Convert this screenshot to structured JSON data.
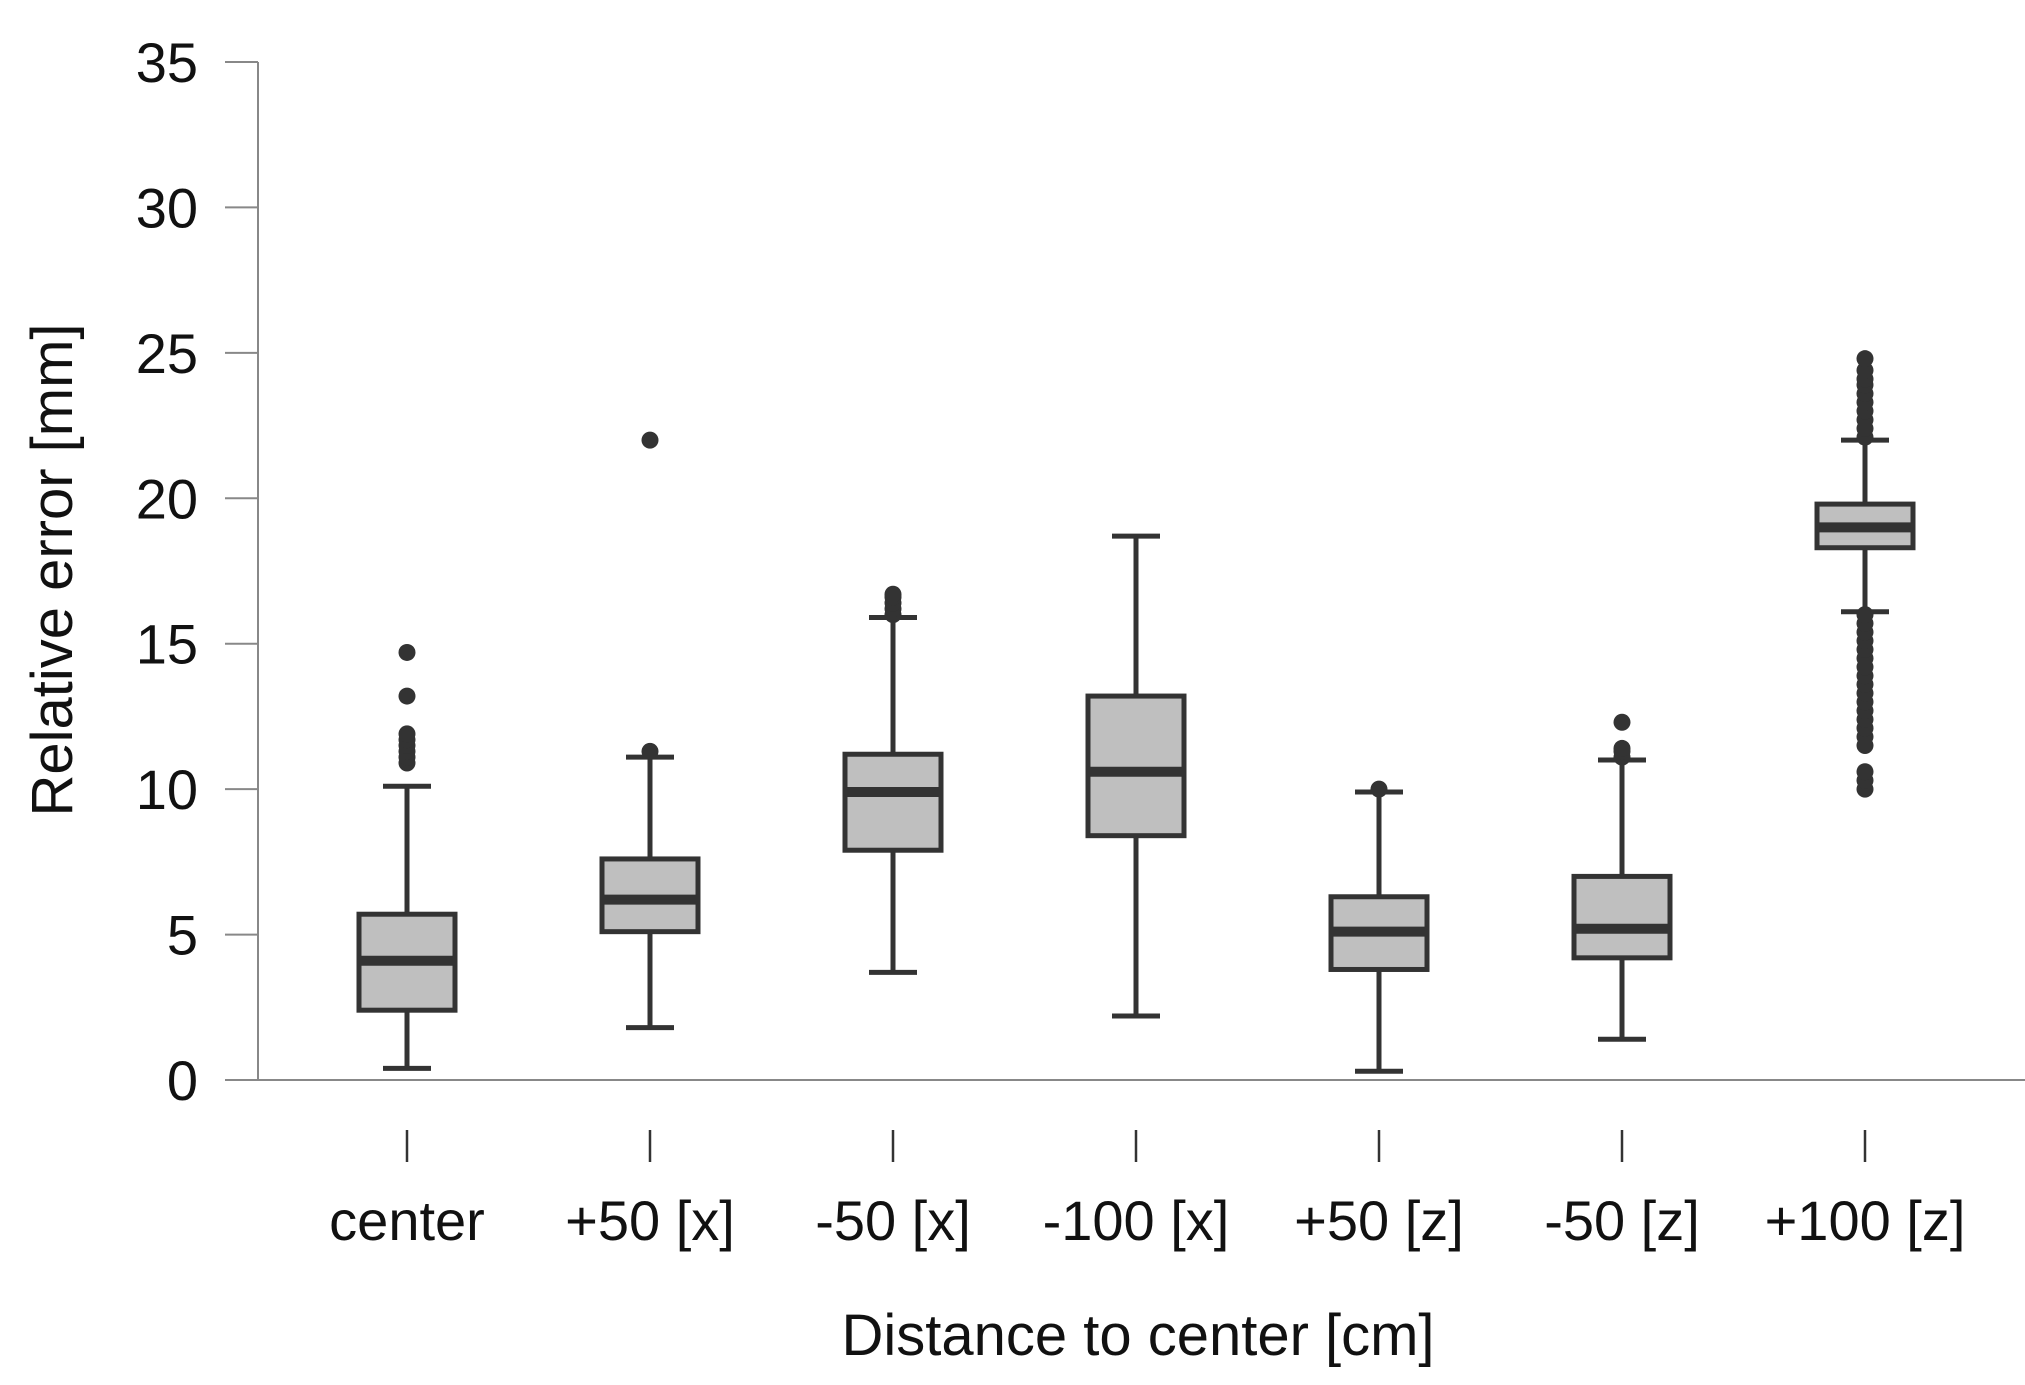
{
  "chart_data": {
    "type": "boxplot",
    "title": "",
    "xlabel": "Distance to center [cm]",
    "ylabel": "Relative error [mm]",
    "ylim": [
      0,
      35
    ],
    "yticks": [
      0,
      5,
      10,
      15,
      20,
      25,
      30,
      35
    ],
    "grid": false,
    "legend": "none",
    "colors": {
      "box_fill": "#bfbfbf",
      "box_stroke": "#333333",
      "axis": "#888888",
      "text": "#111111"
    },
    "categories": [
      "center",
      "+50 [x]",
      "-50 [x]",
      "-100 [x]",
      "+50 [z]",
      "-50 [z]",
      "+100 [z]"
    ],
    "boxes": [
      {
        "label": "center",
        "whisker_low": 0.4,
        "q1": 2.4,
        "median": 4.1,
        "q3": 5.7,
        "whisker_high": 10.1,
        "outliers": [
          10.9,
          11.1,
          11.3,
          11.5,
          11.7,
          11.9,
          13.2,
          14.7
        ]
      },
      {
        "label": "+50 [x]",
        "whisker_low": 1.8,
        "q1": 5.1,
        "median": 6.2,
        "q3": 7.6,
        "whisker_high": 11.1,
        "outliers": [
          11.3,
          22.0
        ]
      },
      {
        "label": "-50 [x]",
        "whisker_low": 3.7,
        "q1": 7.9,
        "median": 9.9,
        "q3": 11.2,
        "whisker_high": 15.9,
        "outliers": [
          16.0,
          16.2,
          16.4,
          16.6,
          16.7
        ]
      },
      {
        "label": "-100 [x]",
        "whisker_low": 2.2,
        "q1": 8.4,
        "median": 10.6,
        "q3": 13.2,
        "whisker_high": 18.7,
        "outliers": []
      },
      {
        "label": "+50 [z]",
        "whisker_low": 0.3,
        "q1": 3.8,
        "median": 5.1,
        "q3": 6.3,
        "whisker_high": 9.9,
        "outliers": [
          10.0
        ]
      },
      {
        "label": "-50 [z]",
        "whisker_low": 1.4,
        "q1": 4.2,
        "median": 5.2,
        "q3": 7.0,
        "whisker_high": 11.0,
        "outliers": [
          11.1,
          11.3,
          11.4,
          12.3
        ]
      },
      {
        "label": "+100 [z]",
        "whisker_low": 16.1,
        "q1": 18.3,
        "median": 19.0,
        "q3": 19.8,
        "whisker_high": 22.0,
        "outliers": [
          10.0,
          10.3,
          10.6,
          11.5,
          11.8,
          12.1,
          12.4,
          12.7,
          13.0,
          13.3,
          13.6,
          13.9,
          14.2,
          14.5,
          14.8,
          15.1,
          15.4,
          15.7,
          16.0,
          22.1,
          22.4,
          22.7,
          23.0,
          23.3,
          23.6,
          23.9,
          24.1,
          24.4,
          24.8
        ]
      }
    ]
  }
}
